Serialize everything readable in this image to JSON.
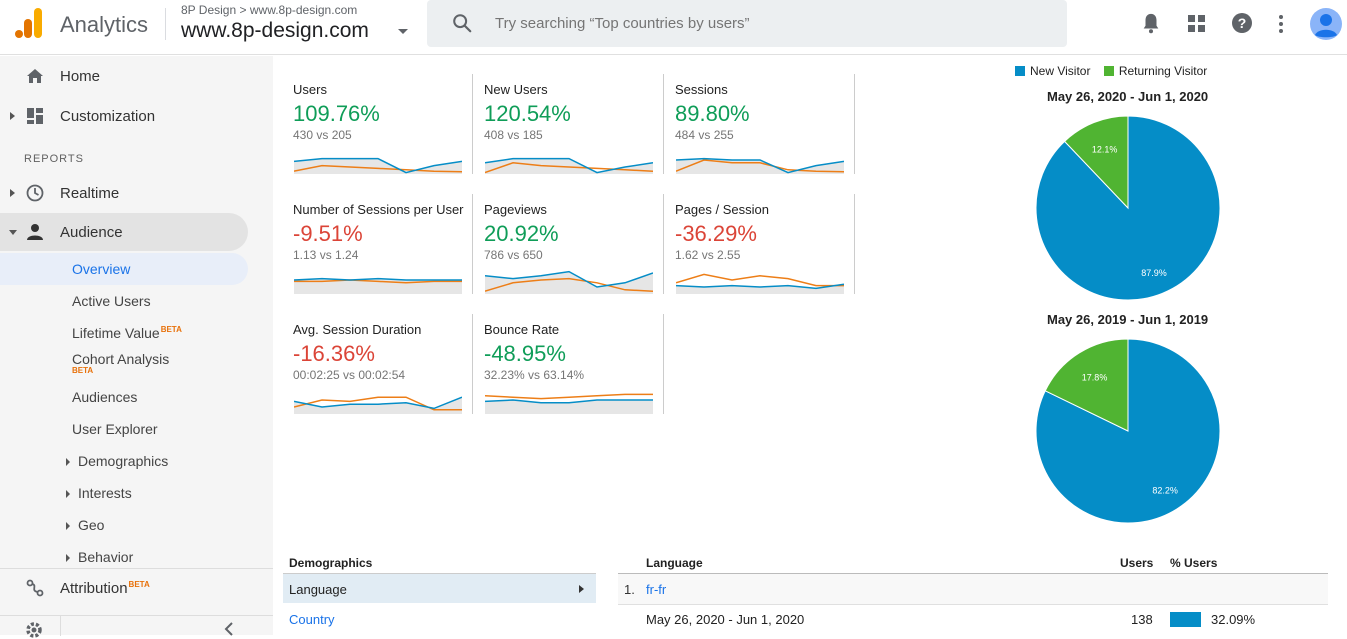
{
  "header": {
    "app_title": "Analytics",
    "breadcrumb_account": "8P Design",
    "breadcrumb_sep": ">",
    "breadcrumb_property": "www.8p-design.com",
    "property_name": "www.8p-design.com",
    "search_placeholder": "Try searching “Top countries by users”",
    "icons": [
      "bell-icon",
      "apps-grid-icon",
      "help-icon",
      "more-vert-icon",
      "avatar"
    ]
  },
  "sidebar": {
    "home": "Home",
    "customization": "Customization",
    "reports_label": "REPORTS",
    "realtime": "Realtime",
    "audience": "Audience",
    "audience_items": [
      "Overview",
      "Active Users",
      "Lifetime Value",
      "Cohort Analysis",
      "Audiences",
      "User Explorer",
      "Demographics",
      "Interests",
      "Geo",
      "Behavior"
    ],
    "beta": "BETA",
    "attribution": "Attribution"
  },
  "metrics": [
    {
      "label": "Users",
      "value": "109.76%",
      "compare": "430 vs 205",
      "trend": "positive"
    },
    {
      "label": "New Users",
      "value": "120.54%",
      "compare": "408 vs 185",
      "trend": "positive"
    },
    {
      "label": "Sessions",
      "value": "89.80%",
      "compare": "484 vs 255",
      "trend": "positive"
    },
    {
      "label": "Number of Sessions per User",
      "value": "-9.51%",
      "compare": "1.13 vs 1.24",
      "trend": "negative"
    },
    {
      "label": "Pageviews",
      "value": "20.92%",
      "compare": "786 vs 650",
      "trend": "positive"
    },
    {
      "label": "Pages / Session",
      "value": "-36.29%",
      "compare": "1.62 vs 2.55",
      "trend": "negative"
    },
    {
      "label": "Avg. Session Duration",
      "value": "-16.36%",
      "compare": "00:02:25 vs 00:02:54",
      "trend": "negative"
    },
    {
      "label": "Bounce Rate",
      "value": "-48.95%",
      "compare": "32.23% vs 63.14%",
      "trend": "positive"
    }
  ],
  "legend": {
    "new_visitor": "New Visitor",
    "returning_visitor": "Returning Visitor"
  },
  "colors": {
    "new_visitor": "#058dc7",
    "returning_visitor": "#50b432",
    "positive": "#0f9d58",
    "negative": "#db4437",
    "spark_current": "#058dc7",
    "spark_previous": "#ed7e17"
  },
  "pies": [
    {
      "title": "May 26, 2020 - Jun 1, 2020",
      "new_pct": 87.9,
      "returning_pct": 12.1,
      "new_label": "87.9%",
      "returning_label": "12.1%"
    },
    {
      "title": "May 26, 2019 - Jun 1, 2019",
      "new_pct": 82.2,
      "returning_pct": 17.8,
      "new_label": "82.2%",
      "returning_label": "17.8%"
    }
  ],
  "demographics": {
    "heading": "Demographics",
    "items": [
      "Language",
      "Country"
    ],
    "table_heading": "Language",
    "col_users": "Users",
    "col_pct_users": "% Users",
    "row_index": "1.",
    "row_value": "fr-fr",
    "sub_row_label": "May 26, 2020 - Jun 1, 2020",
    "sub_row_users": "138",
    "sub_row_pct": "32.09%",
    "sub_row_pct_value": 32.09
  }
}
